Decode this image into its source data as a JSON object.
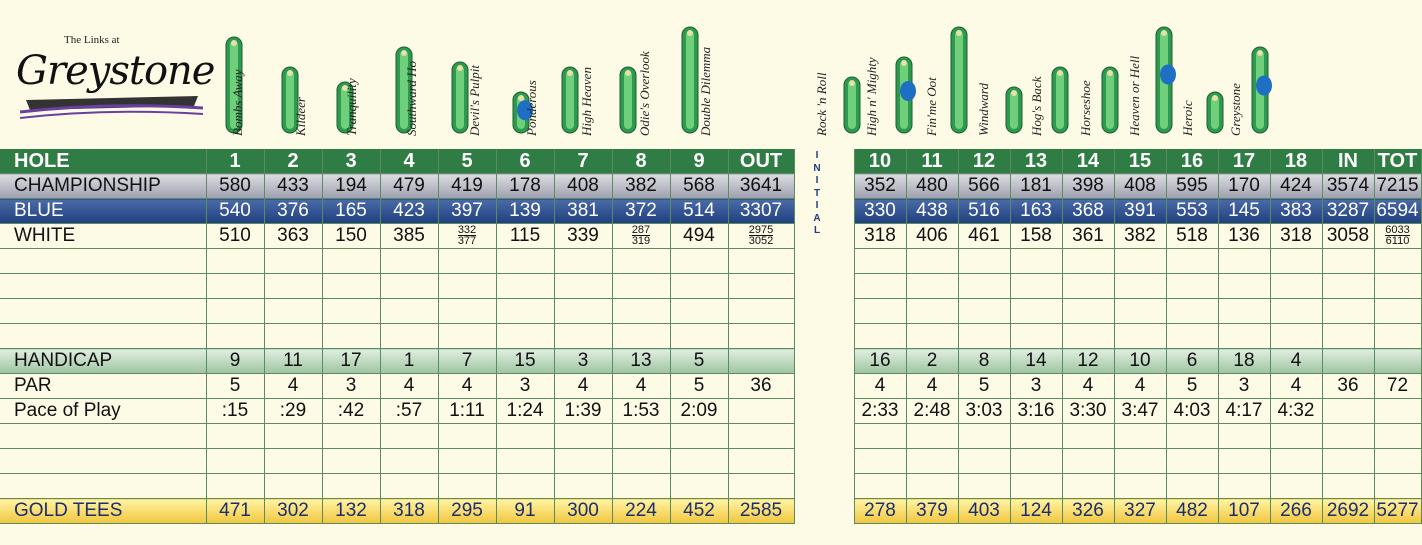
{
  "logo": {
    "small": "The Links at",
    "big": "Greystone"
  },
  "holes": [
    {
      "name": "Bombs Away"
    },
    {
      "name": "Kildeer"
    },
    {
      "name": "Tranquility"
    },
    {
      "name": "Southward Ho"
    },
    {
      "name": "Devil's Pulpit"
    },
    {
      "name": "Ponderous"
    },
    {
      "name": "High Heaven"
    },
    {
      "name": "Odie's Overlook"
    },
    {
      "name": "Double Dilemma"
    },
    {
      "name": "Rock 'n Roll"
    },
    {
      "name": "High n' Mighty"
    },
    {
      "name": "Fin'me Oot"
    },
    {
      "name": "Windward"
    },
    {
      "name": "Hog's Back"
    },
    {
      "name": "Horseshoe"
    },
    {
      "name": "Heaven or Hell"
    },
    {
      "name": "Heroic"
    },
    {
      "name": "Greystone"
    }
  ],
  "initial_label": "INITIAL",
  "rows": {
    "hole": {
      "label": "HOLE",
      "front": [
        "1",
        "2",
        "3",
        "4",
        "5",
        "6",
        "7",
        "8",
        "9"
      ],
      "out": "OUT",
      "back": [
        "10",
        "11",
        "12",
        "13",
        "14",
        "15",
        "16",
        "17",
        "18"
      ],
      "in": "IN",
      "tot": "TOT"
    },
    "championship": {
      "label": "CHAMPIONSHIP",
      "front": [
        "580",
        "433",
        "194",
        "479",
        "419",
        "178",
        "408",
        "382",
        "568"
      ],
      "out": "3641",
      "back": [
        "352",
        "480",
        "566",
        "181",
        "398",
        "408",
        "595",
        "170",
        "424"
      ],
      "in": "3574",
      "tot": "7215"
    },
    "blue": {
      "label": "BLUE",
      "front": [
        "540",
        "376",
        "165",
        "423",
        "397",
        "139",
        "381",
        "372",
        "514"
      ],
      "out": "3307",
      "back": [
        "330",
        "438",
        "516",
        "163",
        "368",
        "391",
        "553",
        "145",
        "383"
      ],
      "in": "3287",
      "tot": "6594"
    },
    "white": {
      "label": "WHITE",
      "front": [
        "510",
        "363",
        "150",
        "385",
        "",
        "115",
        "339",
        "",
        "494"
      ],
      "h5_top": "332",
      "h5_bot": "377",
      "h8_top": "287",
      "h8_bot": "319",
      "out_top": "2975",
      "out_bot": "3052",
      "back": [
        "318",
        "406",
        "461",
        "158",
        "361",
        "382",
        "518",
        "136",
        "318"
      ],
      "in": "3058",
      "tot_top": "6033",
      "tot_bot": "6110"
    },
    "handicap": {
      "label": "HANDICAP",
      "front": [
        "9",
        "11",
        "17",
        "1",
        "7",
        "15",
        "3",
        "13",
        "5"
      ],
      "back": [
        "16",
        "2",
        "8",
        "14",
        "12",
        "10",
        "6",
        "18",
        "4"
      ]
    },
    "par": {
      "label": "PAR",
      "front": [
        "5",
        "4",
        "3",
        "4",
        "4",
        "3",
        "4",
        "4",
        "5"
      ],
      "out": "36",
      "back": [
        "4",
        "4",
        "5",
        "3",
        "4",
        "4",
        "5",
        "3",
        "4"
      ],
      "in": "36",
      "tot": "72"
    },
    "pace": {
      "label": "Pace of Play",
      "front": [
        ":15",
        ":29",
        ":42",
        ":57",
        "1:11",
        "1:24",
        "1:39",
        "1:53",
        "2:09"
      ],
      "back": [
        "2:33",
        "2:48",
        "3:03",
        "3:16",
        "3:30",
        "3:47",
        "4:03",
        "4:17",
        "4:32"
      ]
    },
    "gold": {
      "label": "GOLD TEES",
      "front": [
        "471",
        "302",
        "132",
        "318",
        "295",
        "91",
        "300",
        "224",
        "452"
      ],
      "out": "2585",
      "back": [
        "278",
        "379",
        "403",
        "124",
        "326",
        "327",
        "482",
        "107",
        "266"
      ],
      "in": "2692",
      "tot": "5277"
    }
  },
  "colors": {
    "hole_row": "#2f7c45",
    "blue_row": "#1f3f7e",
    "gold_row": "#f1c63d",
    "paper": "#fdfbe6"
  }
}
